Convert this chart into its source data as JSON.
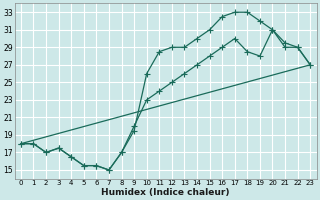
{
  "xlabel": "Humidex (Indice chaleur)",
  "bg_color": "#cde8e8",
  "grid_color": "#ffffff",
  "line_color": "#1a6b5a",
  "xlim": [
    -0.5,
    23.5
  ],
  "ylim": [
    14.0,
    34.0
  ],
  "xticks": [
    0,
    1,
    2,
    3,
    4,
    5,
    6,
    7,
    8,
    9,
    10,
    11,
    12,
    13,
    14,
    15,
    16,
    17,
    18,
    19,
    20,
    21,
    22,
    23
  ],
  "yticks": [
    15,
    17,
    19,
    21,
    23,
    25,
    27,
    29,
    31,
    33
  ],
  "line1_x": [
    0,
    1,
    2,
    3,
    4,
    5,
    6,
    7,
    8,
    9,
    10,
    11,
    12,
    13,
    14,
    15,
    16,
    17,
    18,
    19,
    20,
    21,
    22,
    23
  ],
  "line1_y": [
    18.0,
    18.0,
    17.0,
    17.5,
    16.5,
    15.5,
    15.5,
    15.0,
    17.0,
    19.5,
    26.0,
    28.5,
    29.0,
    29.0,
    30.0,
    31.0,
    32.5,
    33.0,
    33.0,
    32.0,
    31.0,
    29.0,
    29.0,
    27.0
  ],
  "line2_x": [
    0,
    1,
    2,
    3,
    4,
    5,
    6,
    7,
    8,
    9,
    10,
    11,
    12,
    13,
    14,
    15,
    16,
    17,
    18,
    19,
    20,
    21,
    22,
    23
  ],
  "line2_y": [
    18.0,
    18.0,
    17.0,
    17.5,
    16.5,
    15.5,
    15.5,
    15.0,
    17.0,
    20.0,
    23.0,
    24.0,
    25.0,
    26.0,
    27.0,
    28.0,
    29.0,
    30.0,
    28.5,
    28.0,
    31.0,
    29.5,
    29.0,
    27.0
  ],
  "line3_x": [
    0,
    23
  ],
  "line3_y": [
    18.0,
    27.0
  ]
}
